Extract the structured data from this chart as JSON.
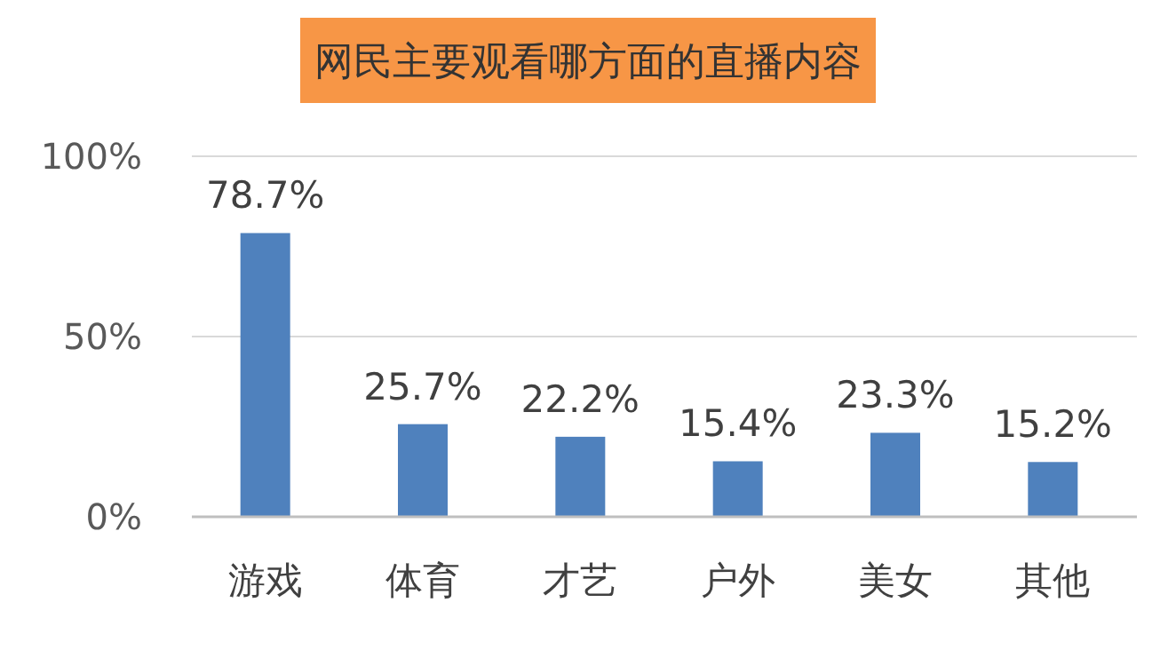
{
  "chart_data": {
    "type": "bar",
    "title": "网民主要观看哪方面的直播内容",
    "categories": [
      "游戏",
      "体育",
      "才艺",
      "户外",
      "美女",
      "其他"
    ],
    "values": [
      78.7,
      25.7,
      22.2,
      15.4,
      23.3,
      15.2
    ],
    "value_labels": [
      "78.7%",
      "25.7%",
      "22.2%",
      "15.4%",
      "23.3%",
      "15.2%"
    ],
    "color": "#4f81bd",
    "ylim": [
      0,
      100
    ],
    "yticks": [
      {
        "value": 0,
        "label": "0%"
      },
      {
        "value": 50,
        "label": "50%"
      },
      {
        "value": 100,
        "label": "100%"
      }
    ],
    "grid": "y"
  }
}
